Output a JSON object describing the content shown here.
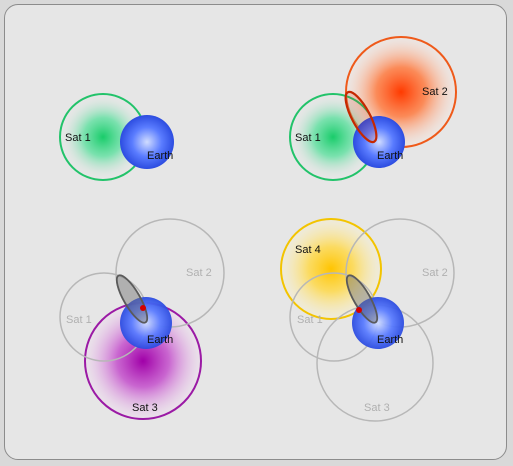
{
  "panels": [
    {
      "id": "panel-1",
      "earth": {
        "label": "Earth"
      },
      "satellites": [
        {
          "label": "Sat 1",
          "state": "active",
          "color": "#19cc6a",
          "ring": "#22c36a"
        }
      ]
    },
    {
      "id": "panel-2",
      "earth": {
        "label": "Earth"
      },
      "satellites": [
        {
          "label": "Sat 1",
          "state": "active",
          "color": "#19cc6a",
          "ring": "#22c36a"
        },
        {
          "label": "Sat 2",
          "state": "active",
          "color": "#ff3a00",
          "ring": "#ef5a1a"
        }
      ],
      "intersection": {
        "type": "ellipse",
        "color": "#c62800"
      }
    },
    {
      "id": "panel-3",
      "earth": {
        "label": "Earth"
      },
      "satellites": [
        {
          "label": "Sat 2",
          "state": "inactive",
          "color": "#bdbdbd",
          "ring": "#b7b7b7"
        },
        {
          "label": "Sat 1",
          "state": "inactive",
          "color": "#bdbdbd",
          "ring": "#b7b7b7"
        },
        {
          "label": "Sat 3",
          "state": "active",
          "color": "#a000a8",
          "ring": "#9b1aa5"
        }
      ],
      "intersection": {
        "type": "ellipse",
        "color": "#6a6a6a"
      },
      "fix_point_color": "#d40000"
    },
    {
      "id": "panel-4",
      "earth": {
        "label": "Earth"
      },
      "satellites": [
        {
          "label": "Sat 2",
          "state": "inactive",
          "color": "#bdbdbd",
          "ring": "#b7b7b7"
        },
        {
          "label": "Sat 1",
          "state": "inactive",
          "color": "#bdbdbd",
          "ring": "#b7b7b7"
        },
        {
          "label": "Sat 3",
          "state": "inactive",
          "color": "#bdbdbd",
          "ring": "#b7b7b7"
        },
        {
          "label": "Sat 4",
          "state": "active",
          "color": "#ffcc00",
          "ring": "#f3c400"
        }
      ],
      "intersection": {
        "type": "ellipse",
        "color": "#6a6a6a"
      },
      "fix_point_color": "#d40000"
    }
  ],
  "colors": {
    "earth_center": "#d0dcff",
    "earth_mid": "#5a7cff",
    "earth_edge": "#2c4ce0",
    "background": "#e6e6e6",
    "frame_border": "#8c8c8c"
  }
}
